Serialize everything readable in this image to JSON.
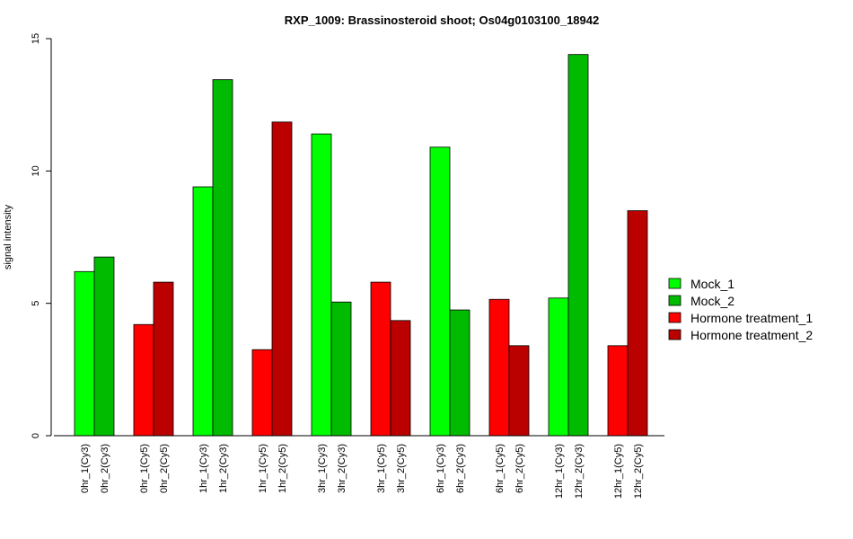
{
  "chart_data": {
    "type": "bar",
    "title": "RXP_1009: Brassinosteroid shoot; Os04g0103100_18942",
    "ylabel": "signal intensity",
    "xlabel": "",
    "ylim": [
      0,
      15
    ],
    "yticks": [
      0,
      5,
      10,
      15
    ],
    "grid": false,
    "legend_position": "right",
    "bar_labels": [
      "0hr_1(Cy3)",
      "0hr_2(Cy3)",
      "0hr_1(Cy5)",
      "0hr_2(Cy5)",
      "1hr_1(Cy3)",
      "1hr_2(Cy3)",
      "1hr_1(Cy5)",
      "1hr_2(Cy5)",
      "3hr_1(Cy3)",
      "3hr_2(Cy3)",
      "3hr_1(Cy5)",
      "3hr_2(Cy5)",
      "6hr_1(Cy3)",
      "6hr_2(Cy3)",
      "6hr_1(Cy5)",
      "6hr_2(Cy5)",
      "12hr_1(Cy3)",
      "12hr_2(Cy3)",
      "12hr_1(Cy5)",
      "12hr_2(Cy5)"
    ],
    "values": [
      6.2,
      6.75,
      4.2,
      5.8,
      9.4,
      13.45,
      3.25,
      11.85,
      11.4,
      5.05,
      5.8,
      4.35,
      10.9,
      4.75,
      5.15,
      3.4,
      5.2,
      14.4,
      3.4,
      8.5
    ],
    "bar_series": [
      0,
      1,
      2,
      3,
      0,
      1,
      2,
      3,
      0,
      1,
      2,
      3,
      0,
      1,
      2,
      3,
      0,
      1,
      2,
      3
    ],
    "series": [
      {
        "name": "Mock_1",
        "color": "#00ff00"
      },
      {
        "name": "Mock_2",
        "color": "#00bb00"
      },
      {
        "name": "Hormone treatment_1",
        "color": "#ff0000"
      },
      {
        "name": "Hormone treatment_2",
        "color": "#bb0000"
      }
    ]
  }
}
